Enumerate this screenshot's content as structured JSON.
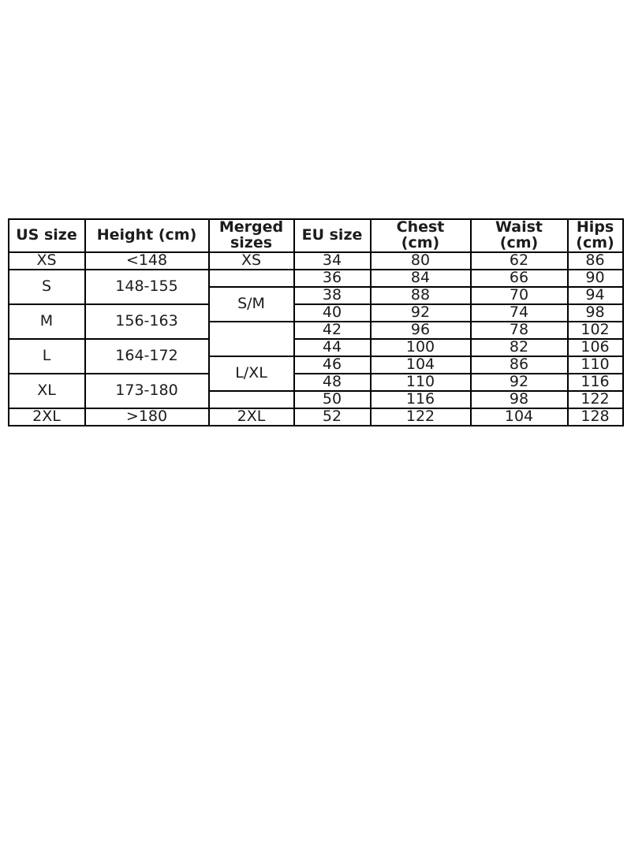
{
  "page": {
    "background_color": "#ffffff",
    "border_color": "#000000",
    "text_color": "#1c1c1c"
  },
  "table": {
    "header": {
      "us_size": "US size",
      "height": "Height (cm)",
      "merged_sizes": "Merged\nsizes",
      "eu_size": "EU size",
      "chest": "Chest\n(cm)",
      "waist": "Waist\n(cm)",
      "hips": "Hips\n(cm)"
    },
    "us_groups": [
      {
        "label": "XS",
        "height": "<148"
      },
      {
        "label": "S",
        "height": "148-155"
      },
      {
        "label": "M",
        "height": "156-163"
      },
      {
        "label": "L",
        "height": "164-172"
      },
      {
        "label": "XL",
        "height": "173-180"
      },
      {
        "label": "2XL",
        "height": ">180"
      }
    ],
    "merged_groups": [
      {
        "label": "XS"
      },
      {
        "label": ""
      },
      {
        "label": "S/M"
      },
      {
        "label": ""
      },
      {
        "label": "L/XL"
      },
      {
        "label": ""
      },
      {
        "label": "2XL"
      }
    ],
    "rows": [
      {
        "eu": "34",
        "chest": "80",
        "waist": "62",
        "hips": "86"
      },
      {
        "eu": "36",
        "chest": "84",
        "waist": "66",
        "hips": "90"
      },
      {
        "eu": "38",
        "chest": "88",
        "waist": "70",
        "hips": "94"
      },
      {
        "eu": "40",
        "chest": "92",
        "waist": "74",
        "hips": "98"
      },
      {
        "eu": "42",
        "chest": "96",
        "waist": "78",
        "hips": "102"
      },
      {
        "eu": "44",
        "chest": "100",
        "waist": "82",
        "hips": "106"
      },
      {
        "eu": "46",
        "chest": "104",
        "waist": "86",
        "hips": "110"
      },
      {
        "eu": "48",
        "chest": "110",
        "waist": "92",
        "hips": "116"
      },
      {
        "eu": "50",
        "chest": "116",
        "waist": "98",
        "hips": "122"
      },
      {
        "eu": "52",
        "chest": "122",
        "waist": "104",
        "hips": "128"
      }
    ]
  }
}
